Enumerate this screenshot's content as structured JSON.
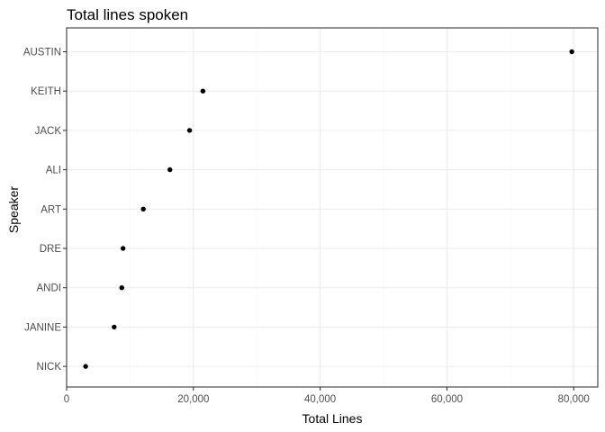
{
  "chart_data": {
    "type": "scatter",
    "title": "Total lines spoken",
    "xlabel": "Total Lines",
    "ylabel": "Speaker",
    "xlim": [
      0,
      83800
    ],
    "x_ticks": [
      0,
      20000,
      40000,
      60000,
      80000
    ],
    "x_tick_labels": [
      "0",
      "20,000",
      "40,000",
      "60,000",
      "80,000"
    ],
    "categories": [
      "AUSTIN",
      "KEITH",
      "JACK",
      "ALI",
      "ART",
      "DRE",
      "ANDI",
      "JANINE",
      "NICK"
    ],
    "values": [
      79700,
      21500,
      19400,
      16300,
      12100,
      8900,
      8700,
      7500,
      3000
    ],
    "grid": true,
    "legend": "none",
    "point_color": "#000000"
  }
}
